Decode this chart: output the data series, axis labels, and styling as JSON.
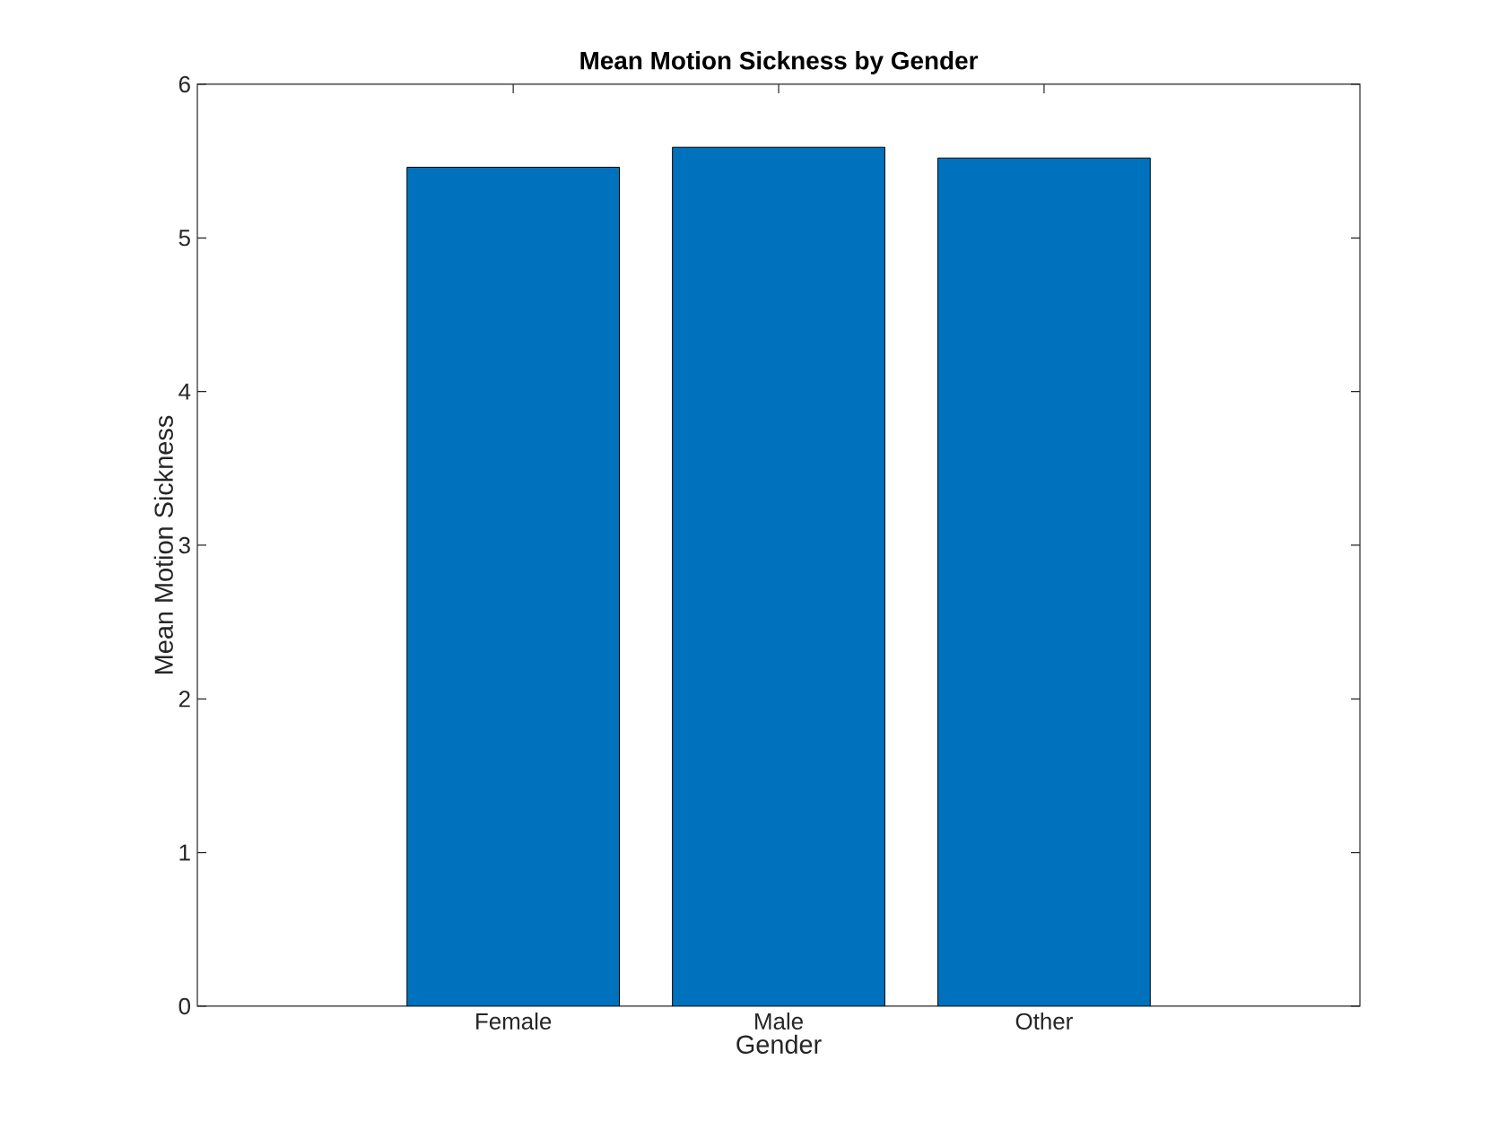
{
  "chart_data": {
    "type": "bar",
    "title": "Mean Motion Sickness by Gender",
    "xlabel": "Gender",
    "ylabel": "Mean Motion Sickness",
    "categories": [
      "Female",
      "Male",
      "Other"
    ],
    "values": [
      5.46,
      5.59,
      5.52
    ],
    "color": "#0072bd",
    "ylim": [
      0,
      6
    ],
    "yticks": [
      0,
      1,
      2,
      3,
      4,
      5,
      6
    ]
  }
}
